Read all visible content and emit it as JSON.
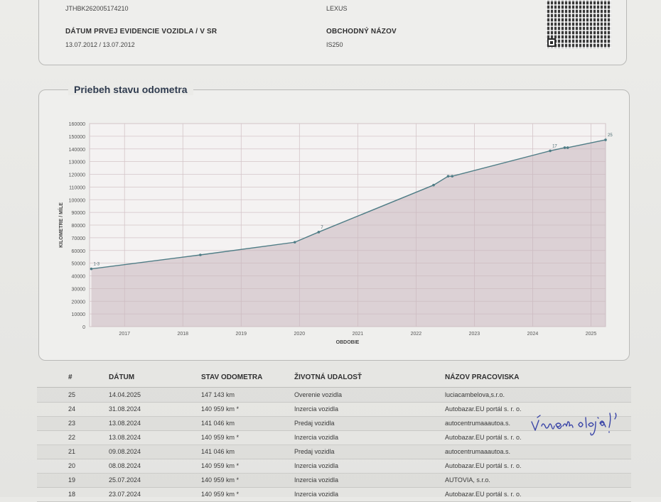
{
  "vehicle": {
    "vin_value": "JTHBK262005174210",
    "brand_value": "LEXUS",
    "first_reg_label": "DÁTUM PRVEJ EVIDENCIE VOZIDLA / V SR",
    "first_reg_value": "13.07.2012 / 13.07.2012",
    "trade_name_label": "OBCHODNÝ NÁZOV",
    "trade_name_value": "IS250"
  },
  "chart_title": "Priebeh stavu odometra",
  "chart_data": {
    "type": "area",
    "title": "Priebeh stavu odometra",
    "xlabel": "OBDOBIE",
    "ylabel": "KILOMETRE / MÍLE",
    "x_ticks": [
      "2017",
      "2018",
      "2019",
      "2020",
      "2021",
      "2022",
      "2023",
      "2024",
      "2025"
    ],
    "y_ticks": [
      0,
      10000,
      20000,
      30000,
      40000,
      50000,
      60000,
      70000,
      80000,
      90000,
      100000,
      110000,
      120000,
      130000,
      140000,
      150000,
      160000
    ],
    "ylim": [
      0,
      160000
    ],
    "xlim": [
      2016.4,
      2025.25
    ],
    "grid": true,
    "colors": {
      "line": "#4f7d86",
      "fill": "#c9b7bd",
      "grid": "#d4c4c8"
    },
    "points": [
      {
        "x": 2016.43,
        "y": 45500,
        "label": "1-3"
      },
      {
        "x": 2018.3,
        "y": 56500
      },
      {
        "x": 2019.92,
        "y": 66500
      },
      {
        "x": 2020.33,
        "y": 74500,
        "label": "7"
      },
      {
        "x": 2022.3,
        "y": 111500
      },
      {
        "x": 2022.55,
        "y": 118500
      },
      {
        "x": 2022.62,
        "y": 118500
      },
      {
        "x": 2024.3,
        "y": 138500,
        "label": "17"
      },
      {
        "x": 2024.55,
        "y": 141000
      },
      {
        "x": 2024.6,
        "y": 141000
      },
      {
        "x": 2025.25,
        "y": 147143,
        "label": "25"
      }
    ]
  },
  "table": {
    "headers": [
      "#",
      "DÁTUM",
      "STAV ODOMETRA",
      "ŽIVOTNÁ UDALOSŤ",
      "NÁZOV PRACOVISKA"
    ],
    "rows": [
      [
        "25",
        "14.04.2025",
        "147 143 km",
        "Overenie vozidla",
        "luciacambelova,s.r.o."
      ],
      [
        "24",
        "31.08.2024",
        "140 959 km *",
        "Inzercia vozidla",
        "Autobazar.EU portál s. r. o."
      ],
      [
        "23",
        "13.08.2024",
        "141 046 km",
        "Predaj vozidla",
        "autocentrumaaautoa.s."
      ],
      [
        "22",
        "13.08.2024",
        "140 959 km *",
        "Inzercia vozidla",
        "Autobazar.EU portál s. r. o."
      ],
      [
        "21",
        "09.08.2024",
        "141 046 km",
        "Predaj vozidla",
        "autocentrumaaautoa.s."
      ],
      [
        "20",
        "08.08.2024",
        "140 959 km *",
        "Inzercia vozidla",
        "Autobazar.EU portál s. r. o."
      ],
      [
        "19",
        "25.07.2024",
        "140 959 km *",
        "Inzercia vozidla",
        "AUTOVIA, s.r.o."
      ],
      [
        "18",
        "23.07.2024",
        "140 959 km *",
        "Inzercia vozidla",
        "Autobazar.EU portál s. r. o."
      ]
    ]
  },
  "handwritten_note": "Výmena oleja!"
}
